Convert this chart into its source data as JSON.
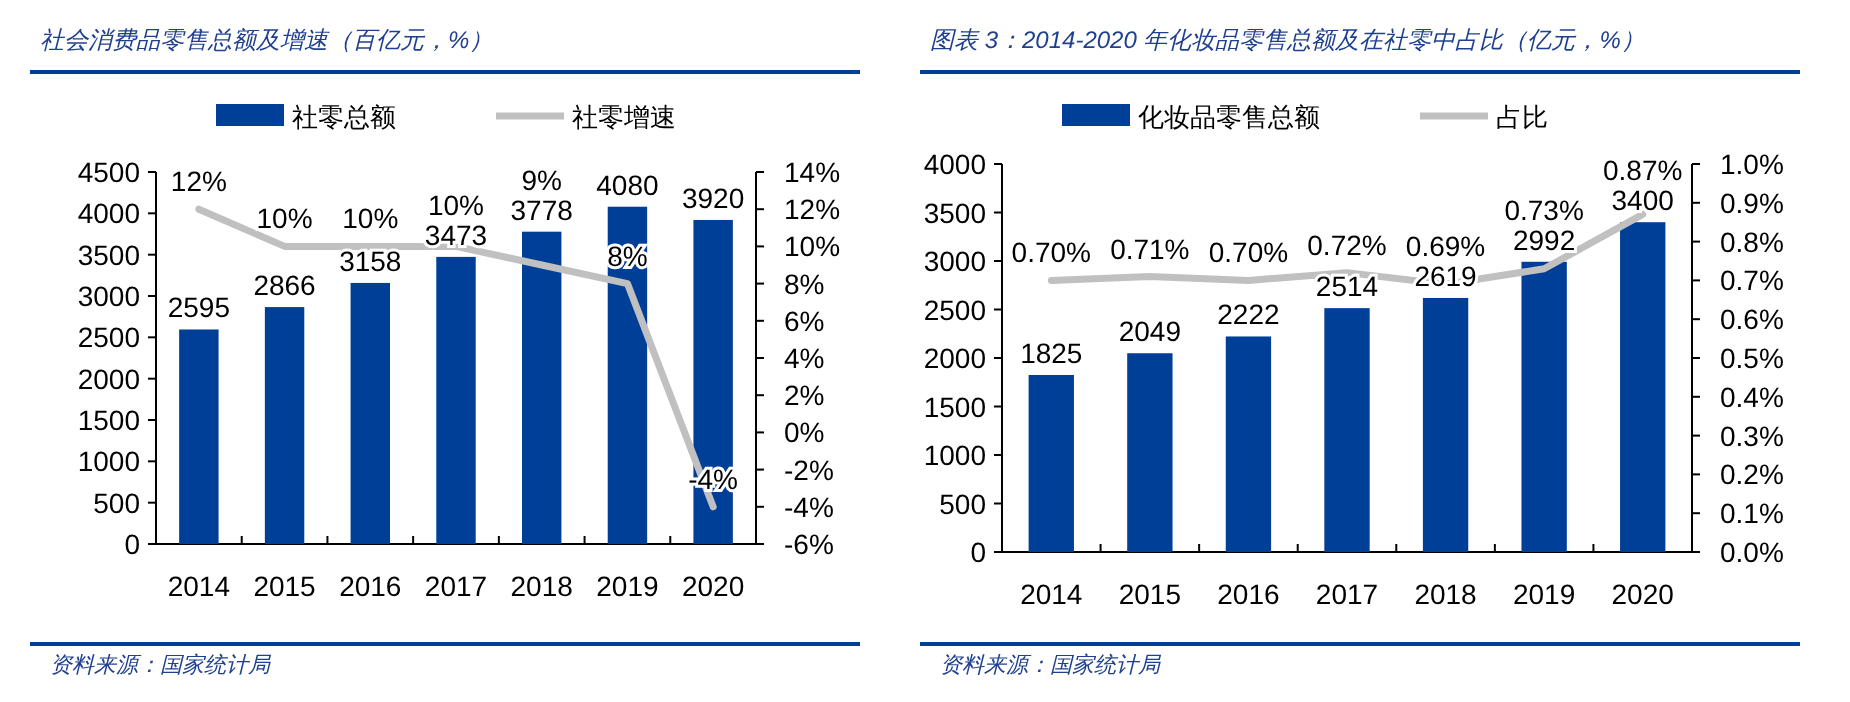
{
  "chart_data": [
    {
      "type": "bar",
      "title": "社会消费品零售总额及增速（百亿元，%）",
      "categories": [
        "2014",
        "2015",
        "2016",
        "2017",
        "2018",
        "2019",
        "2020"
      ],
      "series": [
        {
          "name": "社零总额",
          "color": "#003f97",
          "values": [
            2595,
            2866,
            3158,
            3473,
            3778,
            4080,
            3920
          ]
        },
        {
          "name": "社零增速",
          "type": "line",
          "axis": "y2",
          "color": "#c0c0c0",
          "values": [
            12,
            10,
            10,
            10,
            9,
            8,
            -4
          ],
          "value_labels": [
            "12%",
            "10%",
            "10%",
            "10%",
            "9%",
            "8%",
            "-4%"
          ]
        }
      ],
      "data_labels": true,
      "ylim": [
        0,
        4500
      ],
      "yticks": [
        0,
        500,
        1000,
        1500,
        2000,
        2500,
        3000,
        3500,
        4000,
        4500
      ],
      "y2lim": [
        -6,
        14
      ],
      "y2ticks": [
        {
          "value": -6,
          "label": "-6%"
        },
        {
          "value": -4,
          "label": "-4%"
        },
        {
          "value": -2,
          "label": "-2%"
        },
        {
          "value": 0,
          "label": "0%"
        },
        {
          "value": 2,
          "label": "2%"
        },
        {
          "value": 4,
          "label": "4%"
        },
        {
          "value": 6,
          "label": "6%"
        },
        {
          "value": 8,
          "label": "8%"
        },
        {
          "value": 10,
          "label": "10%"
        },
        {
          "value": 12,
          "label": "12%"
        },
        {
          "value": 14,
          "label": "14%"
        }
      ],
      "legend": "top",
      "annotations": [
        "资料来源：国家统计局"
      ]
    },
    {
      "type": "bar",
      "title": "图表 3：2014-2020 年化妆品零售总额及在社零中占比（亿元，%）",
      "categories": [
        "2014",
        "2015",
        "2016",
        "2017",
        "2018",
        "2019",
        "2020"
      ],
      "series": [
        {
          "name": "化妆品零售总额",
          "color": "#003f97",
          "values": [
            1825,
            2049,
            2222,
            2514,
            2619,
            2992,
            3400
          ]
        },
        {
          "name": "占比",
          "type": "line",
          "axis": "y2",
          "color": "#c0c0c0",
          "values": [
            0.7,
            0.71,
            0.7,
            0.72,
            0.69,
            0.73,
            0.87
          ],
          "value_labels": [
            "0.70%",
            "0.71%",
            "0.70%",
            "0.72%",
            "0.69%",
            "0.73%",
            "0.87%"
          ]
        }
      ],
      "data_labels": true,
      "ylim": [
        0,
        4000
      ],
      "yticks": [
        0,
        500,
        1000,
        1500,
        2000,
        2500,
        3000,
        3500,
        4000
      ],
      "y2lim": [
        0,
        1.0
      ],
      "y2ticks": [
        {
          "value": 0,
          "label": "0.0%"
        },
        {
          "value": 0.1,
          "label": "0.1%"
        },
        {
          "value": 0.2,
          "label": "0.2%"
        },
        {
          "value": 0.3,
          "label": "0.3%"
        },
        {
          "value": 0.4,
          "label": "0.4%"
        },
        {
          "value": 0.5,
          "label": "0.5%"
        },
        {
          "value": 0.6,
          "label": "0.6%"
        },
        {
          "value": 0.7,
          "label": "0.7%"
        },
        {
          "value": 0.8,
          "label": "0.8%"
        },
        {
          "value": 0.9,
          "label": "0.9%"
        },
        {
          "value": 1.0,
          "label": "1.0%"
        }
      ],
      "legend": "top",
      "annotations": [
        "资料来源：国家统计局"
      ]
    }
  ]
}
